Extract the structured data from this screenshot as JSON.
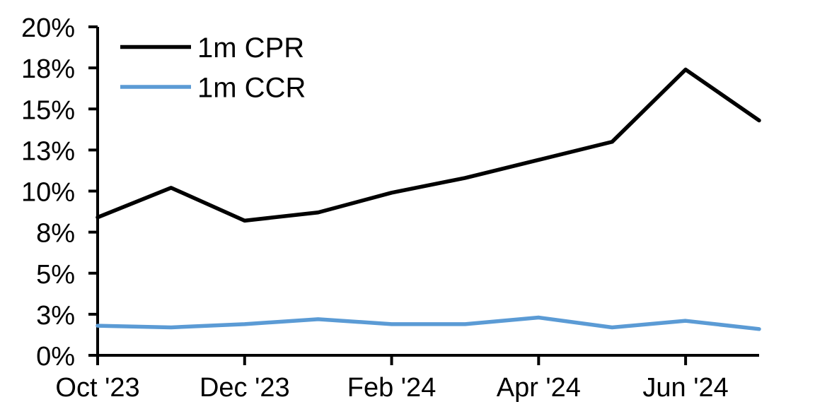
{
  "chart_data": {
    "type": "line",
    "title": "",
    "xlabel": "",
    "ylabel": "",
    "x": [
      "Oct '23",
      "Nov '23",
      "Dec '23",
      "Jan '24",
      "Feb '24",
      "Mar '24",
      "Apr '24",
      "May '24",
      "Jun '24",
      "Jul '24"
    ],
    "x_tick_labels": [
      "Oct '23",
      "Dec '23",
      "Feb '24",
      "Apr '24",
      "Jun '24"
    ],
    "x_tick_indices": [
      0,
      2,
      4,
      6,
      8
    ],
    "series": [
      {
        "name": "1m CPR",
        "color": "#000000",
        "values": [
          8.4,
          10.2,
          8.2,
          8.7,
          9.9,
          10.8,
          11.9,
          13.0,
          17.4,
          14.3
        ]
      },
      {
        "name": "1m CCR",
        "color": "#5B9BD5",
        "values": [
          1.8,
          1.7,
          1.9,
          2.2,
          1.9,
          1.9,
          2.3,
          1.7,
          2.1,
          1.6
        ]
      }
    ],
    "y_axis": {
      "unit": "%",
      "min": 0,
      "max": 20,
      "tick_values": [
        0,
        2.5,
        5,
        7.5,
        10,
        12.5,
        15,
        17.5,
        20
      ],
      "tick_labels": [
        "0%",
        "3%",
        "5%",
        "8%",
        "10%",
        "13%",
        "15%",
        "18%",
        "20%"
      ]
    },
    "ylim": [
      0,
      20
    ],
    "grid": false,
    "legend_position": "top-left"
  },
  "colors": {
    "background": "#FFFFFF",
    "axis": "#000000",
    "cpr_line": "#000000",
    "ccr_line": "#5B9BD5"
  }
}
